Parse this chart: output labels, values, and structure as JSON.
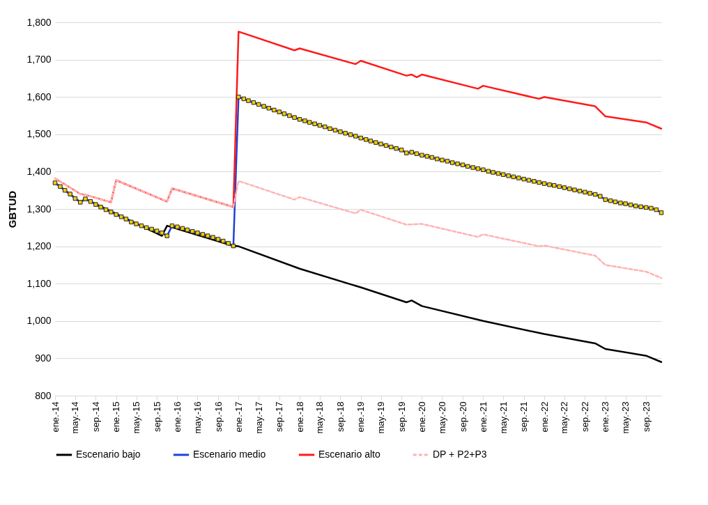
{
  "chart_data": {
    "type": "line",
    "ylabel": "GBTUD",
    "legend": "bottom",
    "grid": "y",
    "xlim": [
      "2014-01",
      "2023-12"
    ],
    "xticks": [
      {
        "value": "2014-01",
        "label": "ene.-14"
      },
      {
        "value": "2014-05",
        "label": "may.-14"
      },
      {
        "value": "2014-09",
        "label": "sep.-14"
      },
      {
        "value": "2015-01",
        "label": "ene.-15"
      },
      {
        "value": "2015-05",
        "label": "may.-15"
      },
      {
        "value": "2015-09",
        "label": "sep.-15"
      },
      {
        "value": "2016-01",
        "label": "ene.-16"
      },
      {
        "value": "2016-05",
        "label": "may.-16"
      },
      {
        "value": "2016-09",
        "label": "sep.-16"
      },
      {
        "value": "2017-01",
        "label": "ene.-17"
      },
      {
        "value": "2017-05",
        "label": "may.-17"
      },
      {
        "value": "2017-09",
        "label": "sep.-17"
      },
      {
        "value": "2018-01",
        "label": "ene.-18"
      },
      {
        "value": "2018-05",
        "label": "may.-18"
      },
      {
        "value": "2018-09",
        "label": "sep.-18"
      },
      {
        "value": "2019-01",
        "label": "ene.-19"
      },
      {
        "value": "2019-05",
        "label": "may.-19"
      },
      {
        "value": "2019-09",
        "label": "sep.-19"
      },
      {
        "value": "2020-01",
        "label": "ene.-20"
      },
      {
        "value": "2020-05",
        "label": "may.-20"
      },
      {
        "value": "2020-09",
        "label": "sep.-20"
      },
      {
        "value": "2021-01",
        "label": "ene.-21"
      },
      {
        "value": "2021-05",
        "label": "may.-21"
      },
      {
        "value": "2021-09",
        "label": "sep.-21"
      },
      {
        "value": "2022-01",
        "label": "ene.-22"
      },
      {
        "value": "2022-05",
        "label": "may.-22"
      },
      {
        "value": "2022-09",
        "label": "sep.-22"
      },
      {
        "value": "2023-01",
        "label": "ene.-23"
      },
      {
        "value": "2023-05",
        "label": "may.-23"
      },
      {
        "value": "2023-09",
        "label": "sep.-23"
      }
    ],
    "ylim": [
      800,
      1800
    ],
    "yticks": [
      800,
      900,
      {
        "value": 1000,
        "label": "1,000"
      },
      {
        "value": 1100,
        "label": "1,100"
      },
      {
        "value": 1200,
        "label": "1,200"
      },
      {
        "value": 1300,
        "label": "1,300"
      },
      {
        "value": 1400,
        "label": "1,400"
      },
      {
        "value": 1500,
        "label": "1,500"
      },
      {
        "value": 1600,
        "label": "1,600"
      },
      {
        "value": 1700,
        "label": "1,700"
      },
      {
        "value": 1800,
        "label": "1,800"
      }
    ],
    "series": [
      {
        "name": "Escenario bajo",
        "color": "#000000",
        "x": [
          "2014-01",
          "2014-06",
          "2014-07",
          "2015-10",
          "2015-11",
          "2016-12",
          "2017-01",
          "2018-01",
          "2019-01",
          "2019-10",
          "2019-11",
          "2020-01",
          "2021-01",
          "2022-01",
          "2022-11",
          "2023-01",
          "2023-09",
          "2023-12"
        ],
        "values": [
          1370,
          1318,
          1327,
          1228,
          1255,
          1201,
          1200,
          1140,
          1090,
          1050,
          1055,
          1040,
          1000,
          965,
          940,
          925,
          907,
          890
        ]
      },
      {
        "name": "Escenario medio",
        "color": "#1f3fd8",
        "marker": "square",
        "x": [
          "2014-01",
          "2014-02",
          "2014-03",
          "2014-04",
          "2014-05",
          "2014-06",
          "2014-07",
          "2014-08",
          "2014-09",
          "2014-10",
          "2014-11",
          "2014-12",
          "2015-01",
          "2015-02",
          "2015-03",
          "2015-04",
          "2015-05",
          "2015-06",
          "2015-07",
          "2015-08",
          "2015-09",
          "2015-10",
          "2015-11",
          "2015-12",
          "2016-01",
          "2016-02",
          "2016-03",
          "2016-04",
          "2016-05",
          "2016-06",
          "2016-07",
          "2016-08",
          "2016-09",
          "2016-10",
          "2016-11",
          "2016-12",
          "2017-01",
          "2017-02",
          "2017-03",
          "2017-04",
          "2017-05",
          "2017-06",
          "2017-07",
          "2017-08",
          "2017-09",
          "2017-10",
          "2017-11",
          "2017-12",
          "2018-01",
          "2018-02",
          "2018-03",
          "2018-04",
          "2018-05",
          "2018-06",
          "2018-07",
          "2018-08",
          "2018-09",
          "2018-10",
          "2018-11",
          "2018-12",
          "2019-01",
          "2019-02",
          "2019-03",
          "2019-04",
          "2019-05",
          "2019-06",
          "2019-07",
          "2019-08",
          "2019-09",
          "2019-10",
          "2019-11",
          "2019-12",
          "2020-01",
          "2020-02",
          "2020-03",
          "2020-04",
          "2020-05",
          "2020-06",
          "2020-07",
          "2020-08",
          "2020-09",
          "2020-10",
          "2020-11",
          "2020-12",
          "2021-01",
          "2021-02",
          "2021-03",
          "2021-04",
          "2021-05",
          "2021-06",
          "2021-07",
          "2021-08",
          "2021-09",
          "2021-10",
          "2021-11",
          "2021-12",
          "2022-01",
          "2022-02",
          "2022-03",
          "2022-04",
          "2022-05",
          "2022-06",
          "2022-07",
          "2022-08",
          "2022-09",
          "2022-10",
          "2022-11",
          "2022-12",
          "2023-01",
          "2023-02",
          "2023-03",
          "2023-04",
          "2023-05",
          "2023-06",
          "2023-07",
          "2023-08",
          "2023-09",
          "2023-10",
          "2023-11",
          "2023-12"
        ],
        "values": [
          1370,
          1360,
          1350,
          1340,
          1328,
          1318,
          1327,
          1320,
          1312,
          1305,
          1298,
          1292,
          1285,
          1279,
          1273,
          1265,
          1260,
          1255,
          1250,
          1246,
          1241,
          1236,
          1228,
          1255,
          1252,
          1248,
          1244,
          1240,
          1236,
          1232,
          1228,
          1224,
          1219,
          1214,
          1208,
          1201,
          1600,
          1595,
          1590,
          1585,
          1580,
          1575,
          1570,
          1565,
          1560,
          1555,
          1550,
          1545,
          1540,
          1536,
          1532,
          1528,
          1524,
          1520,
          1515,
          1511,
          1507,
          1503,
          1499,
          1495,
          1490,
          1486,
          1482,
          1478,
          1474,
          1470,
          1466,
          1462,
          1458,
          1450,
          1452,
          1448,
          1444,
          1441,
          1438,
          1434,
          1431,
          1428,
          1424,
          1421,
          1418,
          1414,
          1411,
          1408,
          1405,
          1401,
          1398,
          1395,
          1392,
          1389,
          1386,
          1383,
          1380,
          1377,
          1374,
          1371,
          1368,
          1365,
          1363,
          1360,
          1357,
          1354,
          1351,
          1348,
          1345,
          1342,
          1339,
          1334,
          1325,
          1322,
          1319,
          1316,
          1314,
          1311,
          1308,
          1306,
          1304,
          1302,
          1298,
          1290
        ]
      },
      {
        "name": "Escenario alto",
        "color": "#ff1a1a",
        "x": [
          "2014-01",
          "2014-06",
          "2014-07",
          "2014-12",
          "2015-01",
          "2015-11",
          "2015-12",
          "2016-12",
          "2017-01",
          "2017-12",
          "2018-01",
          "2018-12",
          "2019-01",
          "2019-10",
          "2019-11",
          "2019-12",
          "2020-01",
          "2020-12",
          "2021-01",
          "2021-12",
          "2022-01",
          "2022-11",
          "2023-01",
          "2023-09",
          "2023-12"
        ],
        "values": [
          1382,
          1340,
          1338,
          1318,
          1377,
          1320,
          1355,
          1305,
          1775,
          1725,
          1730,
          1688,
          1697,
          1657,
          1660,
          1653,
          1660,
          1622,
          1630,
          1595,
          1600,
          1575,
          1548,
          1532,
          1515
        ]
      },
      {
        "name": "DP + P2+P3",
        "color": "#ffb3b3",
        "line_style": "dashed",
        "x": [
          "2014-01",
          "2014-06",
          "2014-07",
          "2014-12",
          "2015-01",
          "2015-11",
          "2015-12",
          "2016-12",
          "2017-01",
          "2017-12",
          "2018-01",
          "2018-12",
          "2019-01",
          "2019-10",
          "2020-01",
          "2020-12",
          "2021-01",
          "2021-12",
          "2022-01",
          "2022-11",
          "2023-01",
          "2023-09",
          "2023-12"
        ],
        "values": [
          1382,
          1340,
          1338,
          1318,
          1377,
          1320,
          1355,
          1305,
          1375,
          1325,
          1332,
          1288,
          1298,
          1258,
          1260,
          1225,
          1232,
          1200,
          1202,
          1175,
          1150,
          1132,
          1115
        ]
      }
    ]
  }
}
